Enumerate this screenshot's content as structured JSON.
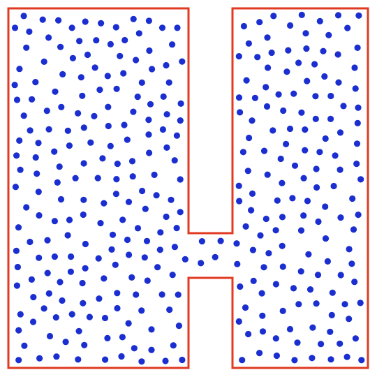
{
  "diagram": {
    "shape": "H-shaped container",
    "colors": {
      "outline": "#e03a22",
      "particle": "#1b2fd0",
      "background": "#ffffff"
    }
  }
}
